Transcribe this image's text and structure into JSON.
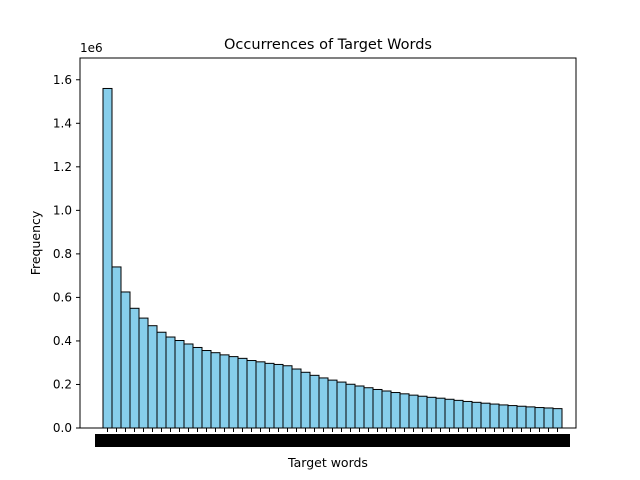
{
  "chart_data": {
    "type": "bar",
    "title": "Occurrences of Target Words",
    "xlabel": "Target words",
    "ylabel": "Frequency",
    "y_offset_label": "1e6",
    "y_scale": 1000000,
    "ylim": [
      0,
      1700000
    ],
    "yticks": [
      0.0,
      0.2,
      0.4,
      0.6,
      0.8,
      1.0,
      1.2,
      1.4,
      1.6
    ],
    "ytick_labels": [
      "0.0",
      "0.2",
      "0.4",
      "0.6",
      "0.8",
      "1.0",
      "1.2",
      "1.4",
      "1.6"
    ],
    "grid": false,
    "bar_color": "#87ceeb",
    "edge_color": "#000000",
    "x_tick_labels_illegible": true,
    "values": [
      1560000,
      740000,
      625000,
      550000,
      505000,
      470000,
      440000,
      418000,
      402000,
      386000,
      370000,
      356000,
      346000,
      336000,
      328000,
      320000,
      310000,
      304000,
      297000,
      292000,
      286000,
      271000,
      256000,
      242000,
      230000,
      220000,
      211000,
      201000,
      193000,
      185000,
      177000,
      170000,
      163000,
      157000,
      151000,
      146000,
      141000,
      137000,
      132000,
      127000,
      122000,
      118000,
      114000,
      110000,
      106000,
      103000,
      100000,
      97000,
      94000,
      92000,
      89000
    ]
  }
}
